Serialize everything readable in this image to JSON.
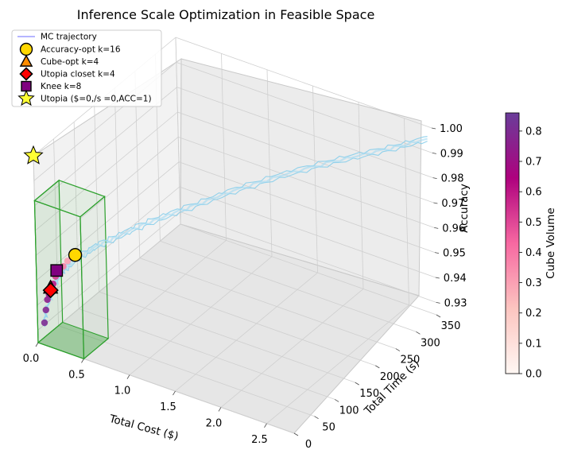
{
  "chart_data": {
    "type": "scatter3d",
    "title": "Inference Scale Optimization in Feasible Space",
    "xlabel": "Total Cost ($)",
    "ylabel": "Total Time (s)",
    "zlabel": "Accuracy",
    "xlim": [
      0,
      2.8
    ],
    "ylim": [
      0,
      350
    ],
    "zlim": [
      0.925,
      1.0
    ],
    "xticks": [
      "0.0",
      "0.5",
      "1.0",
      "1.5",
      "2.0",
      "2.5"
    ],
    "yticks": [
      "0",
      "50",
      "100",
      "150",
      "200",
      "250",
      "300",
      "350"
    ],
    "zticks": [
      "0.93",
      "0.94",
      "0.95",
      "0.96",
      "0.97",
      "0.98",
      "0.99",
      "1.00"
    ],
    "grid": true,
    "legend_position": "top-left",
    "trajectory": {
      "name": "MC trajectory",
      "color": "#87ceeb",
      "x": [
        0.05,
        0.06,
        0.08,
        0.1,
        0.13,
        0.18,
        0.25,
        0.35,
        0.5,
        0.7,
        0.95,
        1.25,
        1.6,
        2.0,
        2.4,
        2.75
      ],
      "y": [
        5,
        8,
        12,
        18,
        25,
        35,
        48,
        65,
        90,
        120,
        155,
        195,
        240,
        285,
        320,
        350
      ],
      "z": [
        0.932,
        0.937,
        0.942,
        0.946,
        0.95,
        0.953,
        0.956,
        0.959,
        0.962,
        0.966,
        0.97,
        0.975,
        0.98,
        0.985,
        0.99,
        0.995
      ]
    },
    "cube_points": {
      "colorbar_label": "Cube Volume",
      "colorbar_ticks": [
        "0.0",
        "0.1",
        "0.2",
        "0.3",
        "0.4",
        "0.5",
        "0.6",
        "0.7",
        "0.8"
      ],
      "colorbar_range": [
        0,
        0.86
      ],
      "x": [
        0.03,
        0.04,
        0.05,
        0.06,
        0.07,
        0.09,
        0.11,
        0.14,
        0.17,
        0.2
      ],
      "y": [
        10,
        12,
        14,
        16,
        18,
        20,
        22,
        25,
        28,
        32
      ],
      "z": [
        0.932,
        0.937,
        0.941,
        0.943,
        0.945,
        0.947,
        0.95,
        0.952,
        0.954,
        0.956
      ],
      "volume": [
        0.8,
        0.78,
        0.75,
        0.72,
        0.68,
        0.6,
        0.52,
        0.45,
        0.38,
        0.3
      ]
    },
    "feasible_box": {
      "x": [
        0,
        0.5
      ],
      "y": [
        0,
        60
      ],
      "z": [
        0.925,
        0.982
      ],
      "color": "#2ca02c"
    },
    "markers": [
      {
        "name": "Accuracy-opt k=16",
        "shape": "circle",
        "color": "#ffd700",
        "x": 0.25,
        "y": 40,
        "z": 0.958
      },
      {
        "name": "Cube-opt k=4",
        "shape": "triangle",
        "color": "#ff8c00",
        "x": 0.07,
        "y": 18,
        "z": 0.9455
      },
      {
        "name": "Utopia closet k=4",
        "shape": "diamond",
        "color": "#ff0000",
        "x": 0.07,
        "y": 18,
        "z": 0.9445
      },
      {
        "name": "Knee k=8",
        "shape": "square",
        "color": "#800080",
        "x": 0.11,
        "y": 25,
        "z": 0.952
      },
      {
        "name": "Utopia ($=0,/s =0,ACC=1)",
        "shape": "star",
        "color": "#ffff33",
        "x": 0,
        "y": 0,
        "z": 1.0
      }
    ]
  }
}
